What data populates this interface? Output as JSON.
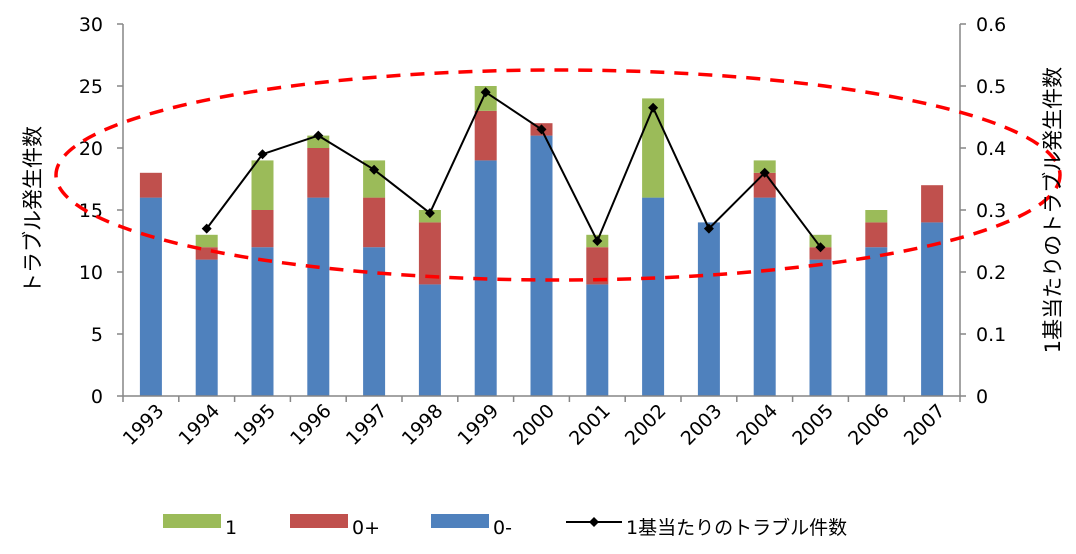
{
  "chart_data": {
    "type": "bar",
    "stacked": true,
    "title": "",
    "xlabel": "",
    "ylabel": "トラブル発生件数",
    "y2label": "1基当たりのトラブル発生件数",
    "ylim": [
      0,
      30
    ],
    "y2lim": [
      0,
      0.6
    ],
    "yticks": [
      "0",
      "5",
      "10",
      "15",
      "20",
      "25",
      "30"
    ],
    "y2ticks": [
      "0",
      "0.1",
      "0.2",
      "0.3",
      "0.4",
      "0.5",
      "0.6"
    ],
    "categories": [
      "1993",
      "1994",
      "1995",
      "1996",
      "1997",
      "1998",
      "1999",
      "2000",
      "2001",
      "2002",
      "2003",
      "2004",
      "2005",
      "2006",
      "2007"
    ],
    "series": [
      {
        "name": "0-",
        "color": "#4f81bd",
        "values": [
          16,
          11,
          12,
          16,
          12,
          9,
          19,
          21,
          9,
          16,
          14,
          16,
          11,
          12,
          14
        ]
      },
      {
        "name": "0+",
        "color": "#c0504d",
        "values": [
          2,
          1,
          3,
          4,
          4,
          5,
          4,
          1,
          3,
          0,
          0,
          2,
          1,
          2,
          3
        ]
      },
      {
        "name": "1",
        "color": "#9bbb59",
        "values": [
          0,
          1,
          4,
          1,
          3,
          1,
          2,
          0,
          1,
          8,
          0,
          1,
          1,
          1,
          0
        ]
      }
    ],
    "line_series": {
      "name": "1基当たりのトラブル件数",
      "color": "#000000",
      "axis": "right",
      "values": [
        null,
        0.27,
        0.39,
        0.42,
        0.365,
        0.295,
        0.49,
        0.43,
        0.25,
        0.465,
        0.27,
        0.36,
        0.24,
        null,
        null
      ]
    },
    "annotation": {
      "shape": "dashed-ellipse",
      "color": "#ff0000"
    },
    "legend": {
      "position": "bottom",
      "items": [
        "1",
        "0+",
        "0-",
        "1基当たりのトラブル件数"
      ]
    },
    "grid": false
  }
}
